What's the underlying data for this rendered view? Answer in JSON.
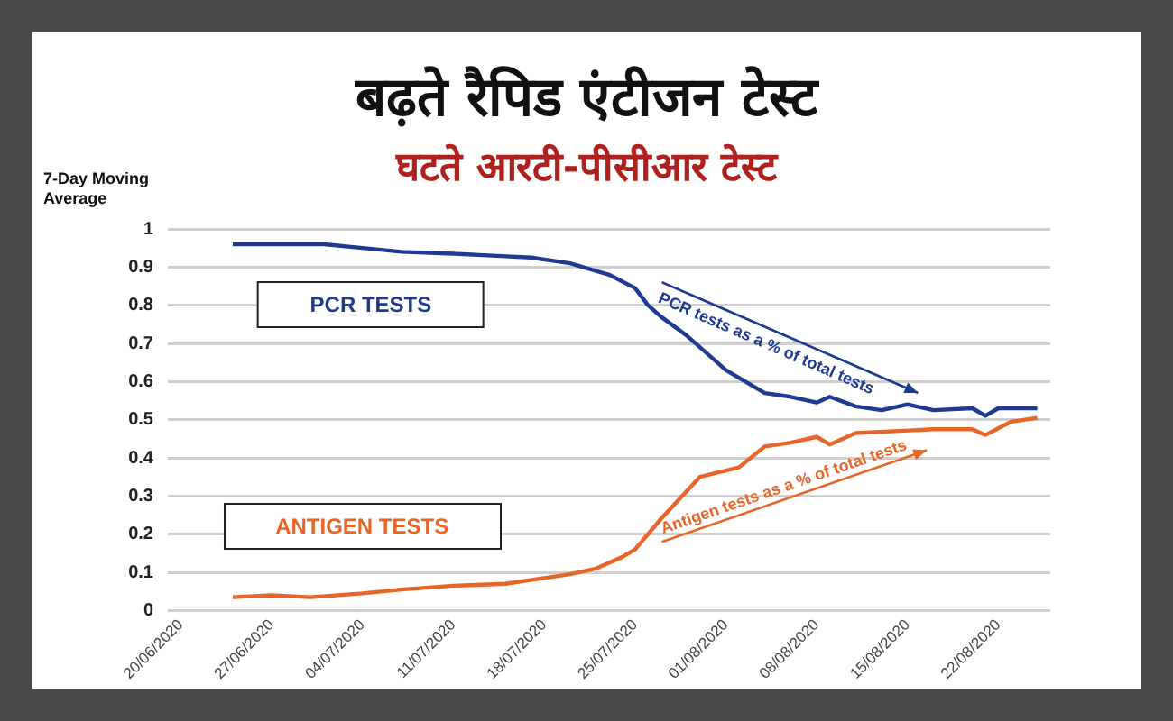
{
  "chart_data": {
    "type": "line",
    "title": "बढ़ते रैपिड एंटीजन टेस्ट",
    "subtitle": "घटते आरटी-पीसीआर टेस्ट",
    "ylabel": "7-Day Moving Average",
    "xlim": [
      "2020-06-19",
      "2020-08-26"
    ],
    "xticks": [
      {
        "value": "2020-06-20",
        "label": "20/06/2020"
      },
      {
        "value": "2020-06-27",
        "label": "27/06/2020"
      },
      {
        "value": "2020-07-04",
        "label": "04/07/2020"
      },
      {
        "value": "2020-07-11",
        "label": "11/07/2020"
      },
      {
        "value": "2020-07-18",
        "label": "18/07/2020"
      },
      {
        "value": "2020-07-25",
        "label": "25/07/2020"
      },
      {
        "value": "2020-08-01",
        "label": "01/08/2020"
      },
      {
        "value": "2020-08-08",
        "label": "08/08/2020"
      },
      {
        "value": "2020-08-15",
        "label": "15/08/2020"
      },
      {
        "value": "2020-08-22",
        "label": "22/08/2020"
      }
    ],
    "ylim": [
      0,
      1
    ],
    "yticks": [
      0,
      0.1,
      0.2,
      0.3,
      0.4,
      0.5,
      0.6,
      0.7,
      0.8,
      0.9,
      1
    ],
    "grid": "y",
    "legend": false,
    "marker": "none",
    "line_style": "solid",
    "series": [
      {
        "name": "PCR TESTS",
        "color": "#1f3a93",
        "x": [
          "2020-06-24",
          "2020-06-27",
          "2020-07-01",
          "2020-07-04",
          "2020-07-07",
          "2020-07-11",
          "2020-07-14",
          "2020-07-17",
          "2020-07-20",
          "2020-07-23",
          "2020-07-25",
          "2020-07-26",
          "2020-07-27",
          "2020-07-29",
          "2020-08-01",
          "2020-08-02",
          "2020-08-04",
          "2020-08-06",
          "2020-08-08",
          "2020-08-09",
          "2020-08-11",
          "2020-08-13",
          "2020-08-15",
          "2020-08-17",
          "2020-08-20",
          "2020-08-21",
          "2020-08-22",
          "2020-08-25"
        ],
        "values": [
          0.96,
          0.96,
          0.96,
          0.95,
          0.94,
          0.935,
          0.93,
          0.925,
          0.91,
          0.88,
          0.845,
          0.8,
          0.77,
          0.72,
          0.63,
          0.61,
          0.57,
          0.56,
          0.545,
          0.56,
          0.535,
          0.525,
          0.54,
          0.525,
          0.53,
          0.51,
          0.53,
          0.53
        ]
      },
      {
        "name": "ANTIGEN TESTS",
        "color": "#e8652a",
        "x": [
          "2020-06-24",
          "2020-06-27",
          "2020-06-30",
          "2020-07-04",
          "2020-07-07",
          "2020-07-11",
          "2020-07-15",
          "2020-07-18",
          "2020-07-20",
          "2020-07-22",
          "2020-07-24",
          "2020-07-25",
          "2020-07-27",
          "2020-07-30",
          "2020-08-02",
          "2020-08-04",
          "2020-08-06",
          "2020-08-08",
          "2020-08-09",
          "2020-08-11",
          "2020-08-14",
          "2020-08-17",
          "2020-08-20",
          "2020-08-21",
          "2020-08-23",
          "2020-08-25"
        ],
        "values": [
          0.035,
          0.04,
          0.035,
          0.045,
          0.055,
          0.065,
          0.07,
          0.085,
          0.095,
          0.11,
          0.14,
          0.16,
          0.24,
          0.35,
          0.375,
          0.43,
          0.44,
          0.455,
          0.435,
          0.465,
          0.47,
          0.475,
          0.475,
          0.46,
          0.495,
          0.505
        ]
      }
    ],
    "annotations": [
      "PCR tests as a % of total tests",
      "Antigen tests as a % of total tests"
    ]
  }
}
